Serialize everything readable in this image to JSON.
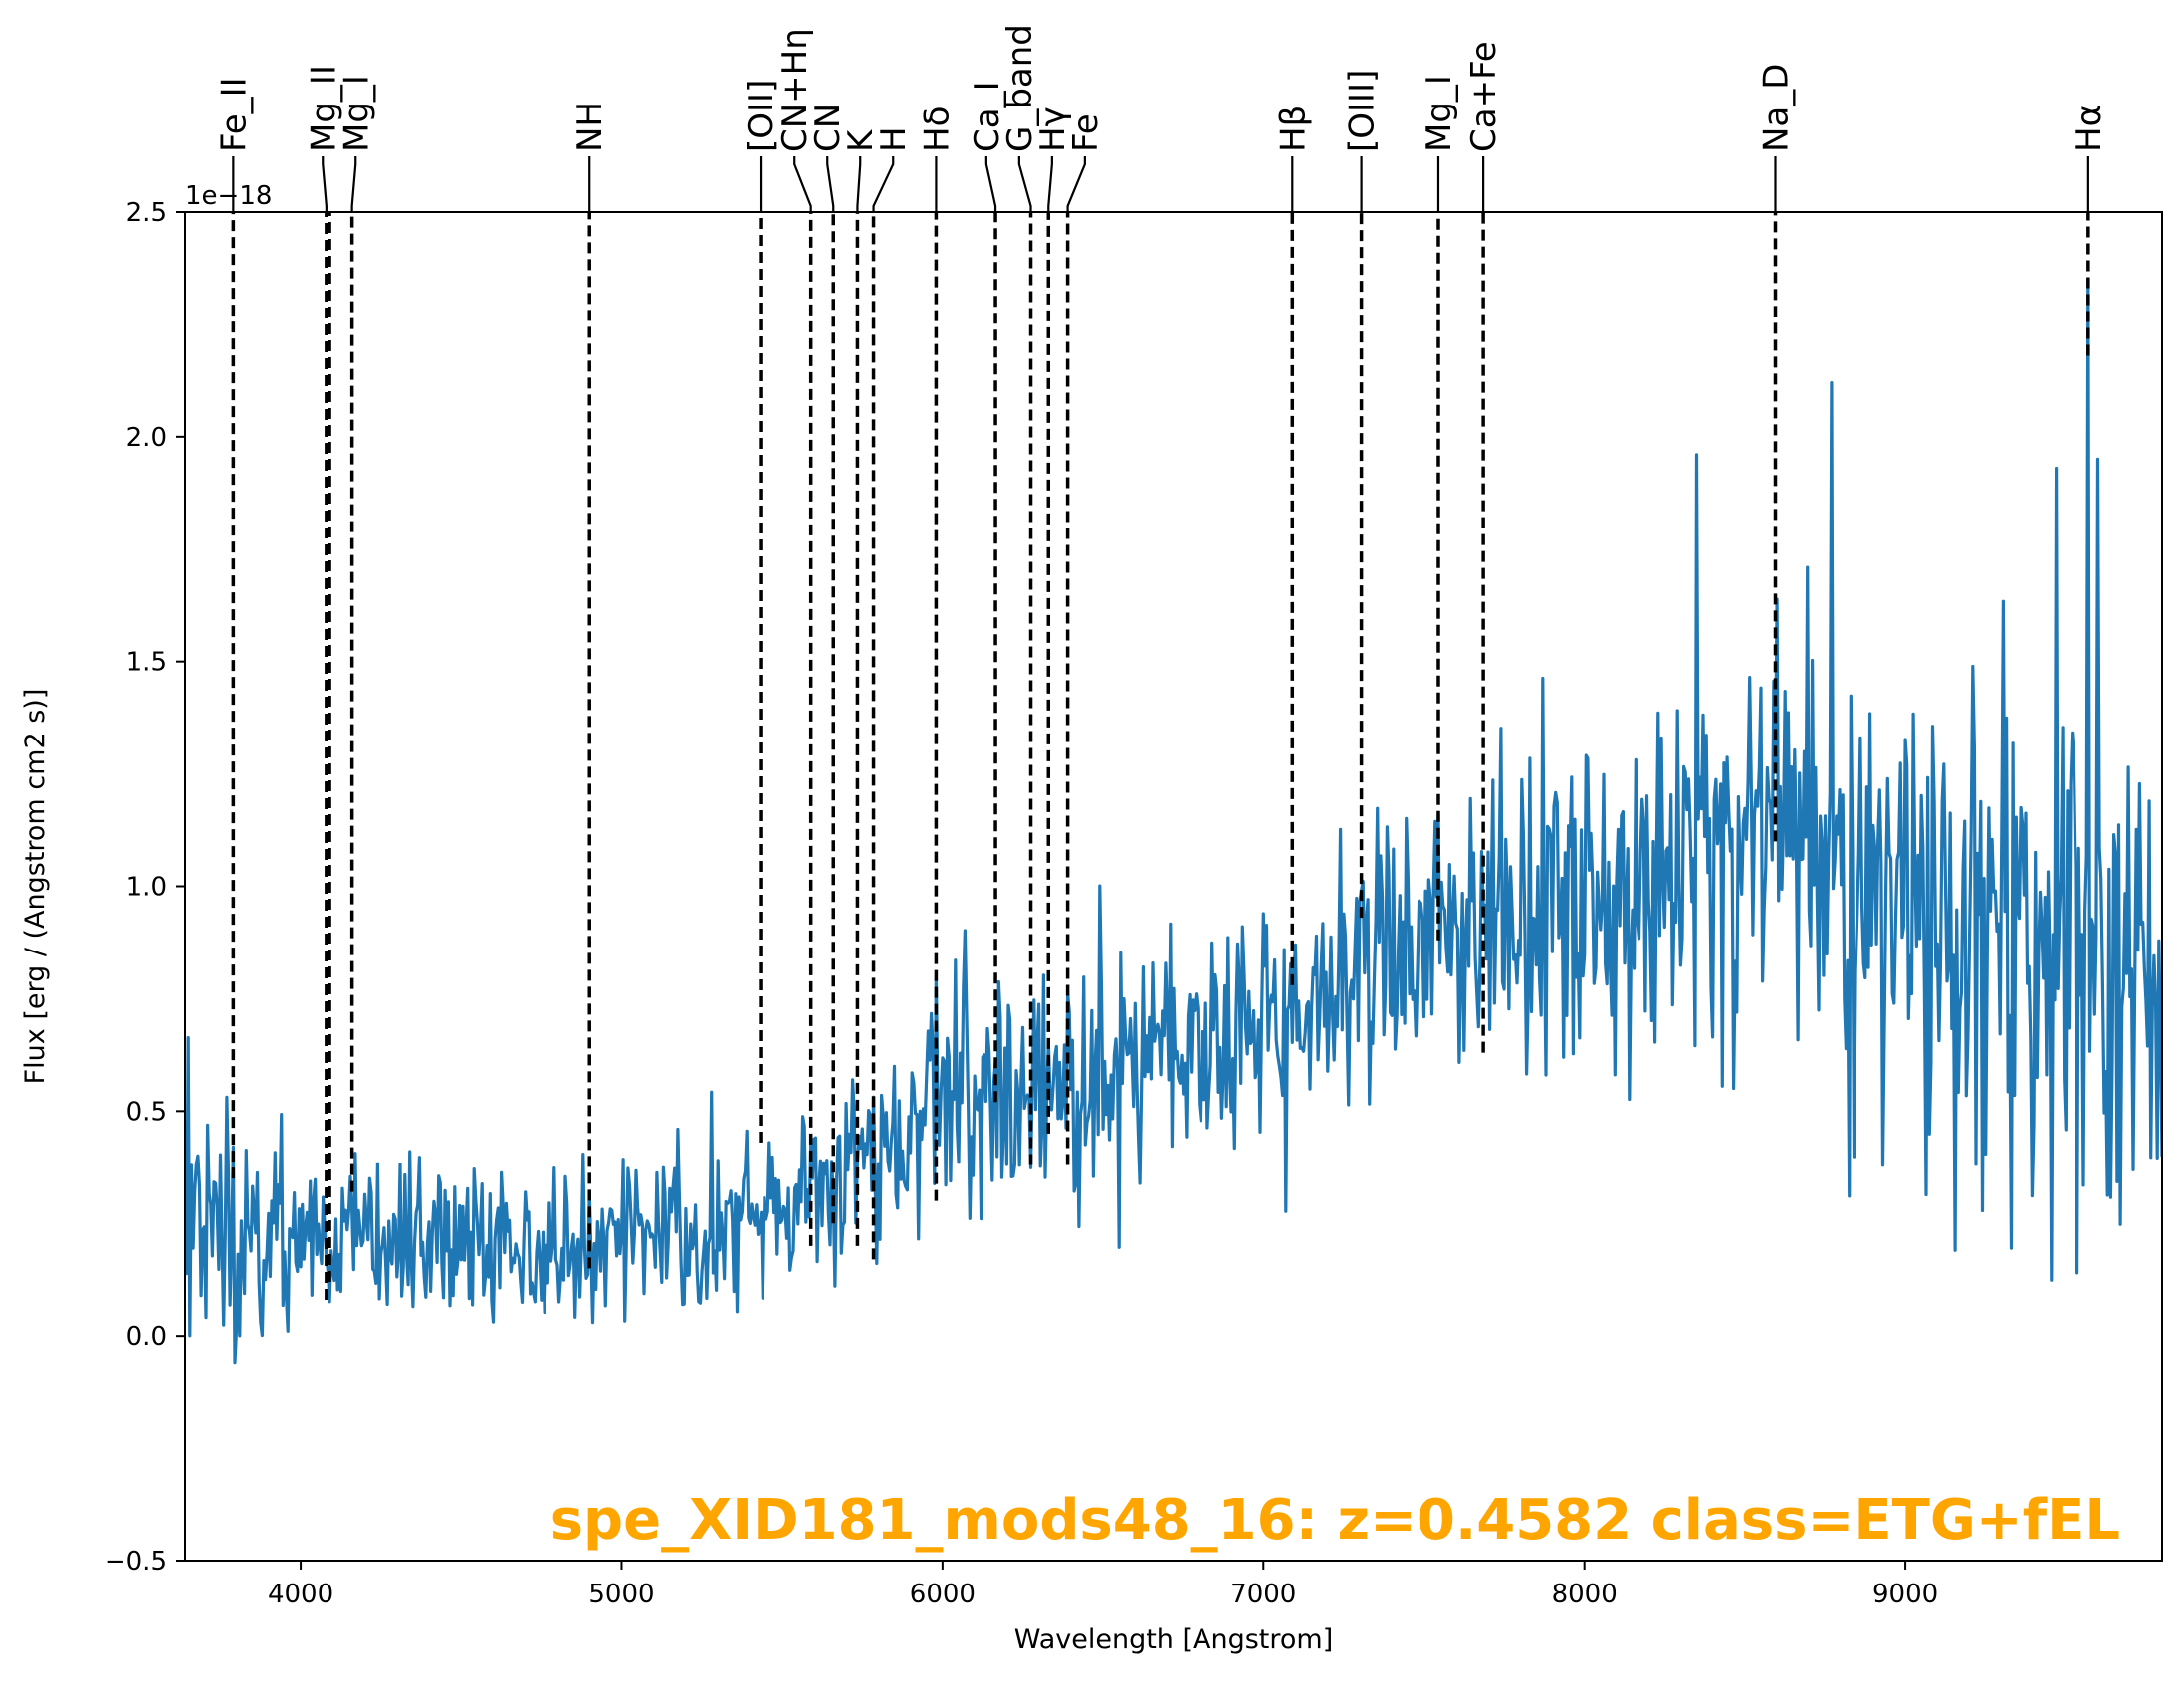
{
  "chart_data": {
    "type": "line",
    "title": "",
    "xlabel": "Wavelength [Angstrom]",
    "ylabel": "Flux [erg / (Angstrom cm2 s)]",
    "y_offset_label": "1e−18",
    "xlim": [
      3640,
      9800
    ],
    "ylim": [
      -0.5,
      2.5
    ],
    "x_ticks": [
      4000,
      5000,
      6000,
      7000,
      8000,
      9000
    ],
    "y_ticks": [
      -0.5,
      0.0,
      0.5,
      1.0,
      1.5,
      2.0,
      2.5
    ],
    "y_tick_labels": [
      "−0.5",
      "0.0",
      "0.5",
      "1.0",
      "1.5",
      "2.0",
      "2.5"
    ],
    "grid": false,
    "series_color": "#1f77b4",
    "annotation": {
      "text": "spe_XID181_mods48_16: z=0.4582 class=ETG+fEL",
      "color": "#ffa500"
    },
    "spectrum_shape": {
      "x_step": 5,
      "seed": 181,
      "continuum": [
        [
          3640,
          0.22
        ],
        [
          4000,
          0.2
        ],
        [
          4500,
          0.19
        ],
        [
          5000,
          0.19
        ],
        [
          5300,
          0.22
        ],
        [
          5600,
          0.35
        ],
        [
          6000,
          0.5
        ],
        [
          6500,
          0.6
        ],
        [
          7000,
          0.68
        ],
        [
          7500,
          0.9
        ],
        [
          8000,
          0.95
        ],
        [
          8300,
          1.05
        ],
        [
          8600,
          1.1
        ],
        [
          9000,
          0.95
        ],
        [
          9500,
          0.82
        ],
        [
          9800,
          0.78
        ]
      ],
      "noise": [
        [
          3640,
          0.16
        ],
        [
          4000,
          0.09
        ],
        [
          5000,
          0.08
        ],
        [
          5600,
          0.12
        ],
        [
          6000,
          0.13
        ],
        [
          7000,
          0.13
        ],
        [
          7700,
          0.17
        ],
        [
          8300,
          0.22
        ],
        [
          8800,
          0.25
        ],
        [
          9300,
          0.28
        ],
        [
          9800,
          0.3
        ]
      ],
      "peaks": [
        [
          9570,
          2.35
        ],
        [
          8770,
          2.12
        ],
        [
          9600,
          1.95
        ],
        [
          8350,
          1.96
        ],
        [
          9470,
          1.93
        ]
      ]
    },
    "lines": [
      {
        "name": "Fe_II",
        "x": 3790,
        "ymin": 0.35
      },
      {
        "name": "Mg_II",
        "x": 4080,
        "ymin": 0.08
      },
      {
        "name": "",
        "x": 4090,
        "ymin": 0.12
      },
      {
        "name": "Mg_I",
        "x": 4160,
        "ymin": 0.32
      },
      {
        "name": "NH",
        "x": 4900,
        "ymin": 0.15
      },
      {
        "name": "[OII]",
        "x": 5433,
        "ymin": 0.43
      },
      {
        "name": "CN+Hη",
        "x": 5590,
        "ymin": 0.2
      },
      {
        "name": "CN",
        "x": 5660,
        "ymin": 0.25
      },
      {
        "name": "K",
        "x": 5735,
        "ymin": 0.2
      },
      {
        "name": "H",
        "x": 5785,
        "ymin": 0.17
      },
      {
        "name": "Hδ",
        "x": 5980,
        "ymin": 0.3
      },
      {
        "name": "Ca_I",
        "x": 6165,
        "ymin": 0.52
      },
      {
        "name": "G_band",
        "x": 6275,
        "ymin": 0.38
      },
      {
        "name": "Hγ",
        "x": 6330,
        "ymin": 0.45
      },
      {
        "name": "Fe",
        "x": 6390,
        "ymin": 0.38
      },
      {
        "name": "Hβ",
        "x": 7090,
        "ymin": 0.78
      },
      {
        "name": "[OIII]",
        "x": 7305,
        "ymin": 0.93
      },
      {
        "name": "Mg_I",
        "x": 7545,
        "ymin": 0.88
      },
      {
        "name": "Ca+Fe",
        "x": 7685,
        "ymin": 0.63
      },
      {
        "name": "Na_D",
        "x": 8595,
        "ymin": 1.1
      },
      {
        "name": "Hα",
        "x": 9570,
        "ymin": 2.18
      }
    ]
  }
}
